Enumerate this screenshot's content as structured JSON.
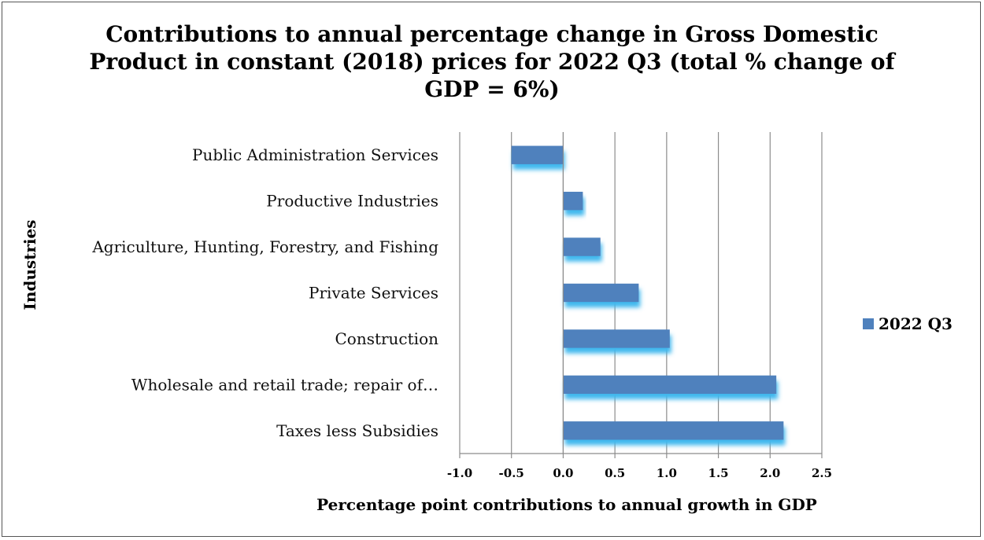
{
  "chart_data": {
    "type": "bar",
    "orientation": "horizontal",
    "title": "Contributions to annual percentage change in Gross Domestic Product in constant (2018) prices for 2022 Q3 (total % change of GDP = 6%)",
    "xlabel": "Percentage point contributions to annual growth in GDP",
    "ylabel": "Industries",
    "categories": [
      "Public Administration Services",
      "Productive Industries",
      "Agriculture, Hunting, Forestry, and Fishing",
      "Private  Services",
      "Construction",
      "Wholesale and retail trade; repair of…",
      "Taxes less Subsidies"
    ],
    "series": [
      {
        "name": "2022 Q3",
        "values": [
          -0.5,
          0.19,
          0.36,
          0.73,
          1.03,
          2.06,
          2.13
        ]
      }
    ],
    "xlim": [
      -1.0,
      2.5
    ],
    "xticks": [
      "-1.0",
      "-0.5",
      "0.0",
      "0.5",
      "1.0",
      "1.5",
      "2.0",
      "2.5"
    ],
    "grid": "vertical",
    "legend_position": "right",
    "bar_color": "#4f81bd",
    "shadow_color": "#3fb8ee"
  }
}
